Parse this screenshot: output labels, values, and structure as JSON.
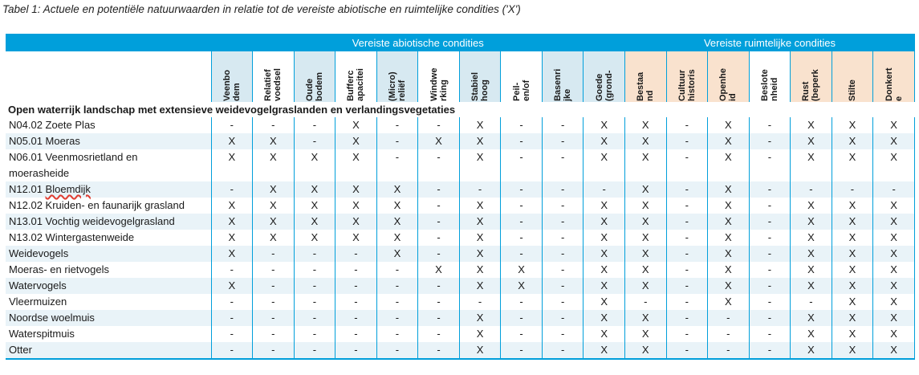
{
  "caption": "Tabel 1: Actuele en potentiële natuurwaarden in relatie tot de vereiste abiotische en ruimtelijke condities ('X')",
  "colors": {
    "header_band": "#009fdb",
    "header_cell_blue": "#d7e9f1",
    "header_cell_peach": "#f9e2ce",
    "row_tint": "#e9f3f8",
    "spellcheck_underline": "#e03c31"
  },
  "groups": [
    {
      "label": "Vereiste abiotische condities",
      "span": 10
    },
    {
      "label": "Vereiste ruimtelijke condities",
      "span": 7
    }
  ],
  "columns": [
    {
      "lines": [
        "Veenbo",
        "dem"
      ],
      "bg": "blue"
    },
    {
      "lines": [
        "Relatief",
        "voedsel"
      ],
      "bg": "white"
    },
    {
      "lines": [
        "Oude",
        "bodem"
      ],
      "bg": "blue"
    },
    {
      "lines": [
        "Bufferc",
        "apacitei"
      ],
      "bg": "white"
    },
    {
      "lines": [
        "(Micro)",
        "reliëf"
      ],
      "bg": "blue"
    },
    {
      "lines": [
        "Windwe",
        "rking"
      ],
      "bg": "white"
    },
    {
      "lines": [
        "Stabiel",
        "hoog"
      ],
      "bg": "blue"
    },
    {
      "lines": [
        "Peil-",
        "en/of"
      ],
      "bg": "white"
    },
    {
      "lines": [
        "Basenri",
        "jke"
      ],
      "bg": "blue"
    },
    {
      "lines": [
        "Goede",
        "(grond-"
      ],
      "bg": "blue"
    },
    {
      "lines": [
        "Bestaa",
        "nd"
      ],
      "bg": "peach"
    },
    {
      "lines": [
        "Cultuur",
        "historis"
      ],
      "bg": "peach"
    },
    {
      "lines": [
        "Openhe",
        "id"
      ],
      "bg": "peach"
    },
    {
      "lines": [
        "Beslote",
        "nheid"
      ],
      "bg": "white"
    },
    {
      "lines": [
        "Rust",
        "(beperk"
      ],
      "bg": "peach"
    },
    {
      "lines": [
        "Stilte"
      ],
      "bg": "peach"
    },
    {
      "lines": [
        "Donkert",
        "e"
      ],
      "bg": "peach"
    }
  ],
  "section_header": "Open waterrijk landschap met extensieve weidevogelgraslanden en verlandingsvegetaties",
  "rows": [
    {
      "label_lines": [
        "N04.02 Zoete Plas"
      ],
      "values": [
        "-",
        "-",
        "-",
        "X",
        "-",
        "-",
        "X",
        "-",
        "-",
        "X",
        "X",
        "-",
        "X",
        "-",
        "X",
        "X",
        "X"
      ]
    },
    {
      "label_lines": [
        "N05.01 Moeras"
      ],
      "values": [
        "X",
        "X",
        "-",
        "X",
        "-",
        "X",
        "X",
        "-",
        "-",
        "X",
        "X",
        "-",
        "X",
        "-",
        "X",
        "X",
        "X"
      ]
    },
    {
      "label_lines": [
        "N06.01 Veenmosrietland en",
        "moerasheide"
      ],
      "values": [
        "X",
        "X",
        "X",
        "X",
        "-",
        "-",
        "X",
        "-",
        "-",
        "X",
        "X",
        "-",
        "X",
        "-",
        "X",
        "X",
        "X"
      ]
    },
    {
      "label_lines": [
        "N12.01 Bloemdijk"
      ],
      "wavy_word": "Bloemdijk",
      "values": [
        "-",
        "X",
        "X",
        "X",
        "X",
        "-",
        "-",
        "-",
        "-",
        "-",
        "X",
        "-",
        "X",
        "-",
        "-",
        "-",
        "-"
      ]
    },
    {
      "label_lines": [
        "N12.02 Kruiden- en faunarijk grasland"
      ],
      "values": [
        "X",
        "X",
        "X",
        "X",
        "X",
        "-",
        "X",
        "-",
        "-",
        "X",
        "X",
        "-",
        "X",
        "-",
        "X",
        "X",
        "X"
      ]
    },
    {
      "label_lines": [
        "N13.01 Vochtig weidevogelgrasland"
      ],
      "values": [
        "X",
        "X",
        "X",
        "X",
        "X",
        "-",
        "X",
        "-",
        "-",
        "X",
        "X",
        "-",
        "X",
        "-",
        "X",
        "X",
        "X"
      ]
    },
    {
      "label_lines": [
        "N13.02 Wintergastenweide"
      ],
      "values": [
        "X",
        "X",
        "X",
        "X",
        "X",
        "-",
        "X",
        "-",
        "-",
        "X",
        "X",
        "-",
        "X",
        "-",
        "X",
        "X",
        "X"
      ]
    },
    {
      "label_lines": [
        "Weidevogels"
      ],
      "values": [
        "X",
        "-",
        "-",
        "-",
        "X",
        "-",
        "X",
        "-",
        "-",
        "X",
        "X",
        "-",
        "X",
        "-",
        "X",
        "X",
        "X"
      ]
    },
    {
      "label_lines": [
        "Moeras- en rietvogels"
      ],
      "values": [
        "-",
        "-",
        "-",
        "-",
        "-",
        "X",
        "X",
        "X",
        "-",
        "X",
        "X",
        "-",
        "X",
        "-",
        "X",
        "X",
        "X"
      ]
    },
    {
      "label_lines": [
        "Watervogels"
      ],
      "values": [
        "X",
        "-",
        "-",
        "-",
        "-",
        "-",
        "X",
        "X",
        "-",
        "X",
        "X",
        "-",
        "X",
        "-",
        "X",
        "X",
        "X"
      ]
    },
    {
      "label_lines": [
        "Vleermuizen"
      ],
      "values": [
        "-",
        "-",
        "-",
        "-",
        "-",
        "-",
        "-",
        "-",
        "-",
        "X",
        "-",
        "-",
        "X",
        "-",
        "-",
        "X",
        "X"
      ]
    },
    {
      "label_lines": [
        "Noordse woelmuis"
      ],
      "values": [
        "-",
        "-",
        "-",
        "-",
        "-",
        "-",
        "X",
        "-",
        "-",
        "X",
        "X",
        "-",
        "-",
        "-",
        "X",
        "X",
        "X"
      ]
    },
    {
      "label_lines": [
        "Waterspitmuis"
      ],
      "values": [
        "-",
        "-",
        "-",
        "-",
        "-",
        "-",
        "X",
        "-",
        "-",
        "X",
        "X",
        "-",
        "-",
        "-",
        "X",
        "X",
        "X"
      ]
    },
    {
      "label_lines": [
        "Otter"
      ],
      "values": [
        "-",
        "-",
        "-",
        "-",
        "-",
        "-",
        "X",
        "-",
        "-",
        "X",
        "X",
        "-",
        "-",
        "-",
        "X",
        "X",
        "X"
      ]
    }
  ]
}
